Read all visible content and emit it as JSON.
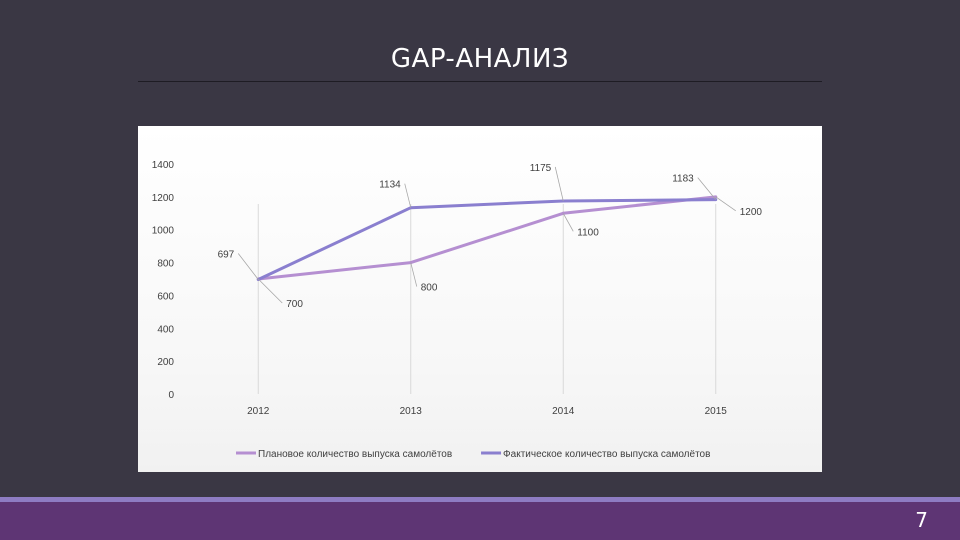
{
  "slide": {
    "title": "GAP-АНАЛИЗ",
    "page_number": "7"
  },
  "colors": {
    "background": "#3a3744",
    "footer": "#5e3574",
    "footer_accent": "#8e7cc3",
    "planned_series": "#b58fd1",
    "actual_series": "#8a7fcf"
  },
  "chart_data": {
    "type": "line",
    "title": "",
    "xlabel": "",
    "ylabel": "",
    "categories": [
      "2012",
      "2013",
      "2014",
      "2015"
    ],
    "ylim": [
      0,
      1400
    ],
    "yticks": [
      "0",
      "200",
      "400",
      "600",
      "800",
      "1000",
      "1200",
      "1400"
    ],
    "grid": "vertical",
    "legend_position": "bottom",
    "series": [
      {
        "name": "Плановое количество выпуска самолётов",
        "values": [
          700,
          800,
          1100,
          1200
        ],
        "labels": [
          "700",
          "800",
          "1100",
          "1200"
        ],
        "color": "#b58fd1"
      },
      {
        "name": "Фактическое количество выпуска самолётов",
        "values": [
          697,
          1134,
          1175,
          1183
        ],
        "labels": [
          "697",
          "1134",
          "1175",
          "1183"
        ],
        "color": "#8a7fcf"
      }
    ]
  }
}
